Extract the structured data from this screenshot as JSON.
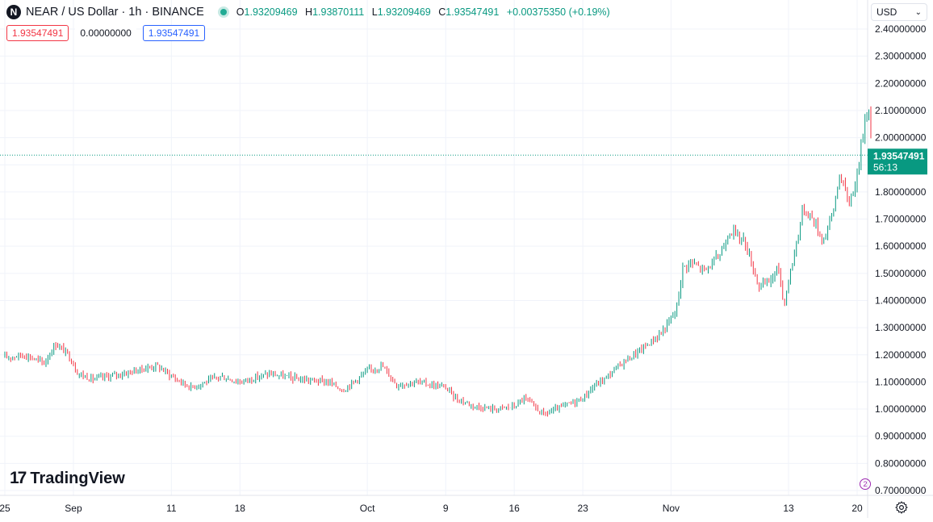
{
  "header": {
    "logo_letter": "N",
    "symbol": "NEAR / US Dollar · 1h · BINANCE",
    "open_label": "O",
    "open": "1.93209469",
    "high_label": "H",
    "high": "1.93870111",
    "low_label": "L",
    "low": "1.93209469",
    "close_label": "C",
    "close": "1.93547491",
    "change": "+0.00375350 (+0.19%)",
    "sell_price": "1.93547491",
    "spread": "0.00000000",
    "buy_price": "1.93547491"
  },
  "currency": {
    "label": "USD"
  },
  "brand": {
    "mark": "17",
    "name": "TradingView"
  },
  "price_tag": {
    "price": "1.93547491",
    "countdown": "56:13"
  },
  "colors": {
    "up": "#089981",
    "down": "#f23645",
    "grid": "#f0f3fa",
    "axis_text": "#131722",
    "price_line": "#089981"
  },
  "chart_data": {
    "type": "candlestick",
    "title": "NEAR / US Dollar · 1h · BINANCE",
    "ylim": [
      0.68,
      2.48
    ],
    "y_ticks": [
      "0.70000000",
      "0.80000000",
      "0.90000000",
      "1.00000000",
      "1.10000000",
      "1.20000000",
      "1.30000000",
      "1.40000000",
      "1.50000000",
      "1.60000000",
      "1.70000000",
      "1.80000000",
      "1.90000000",
      "2.00000000",
      "2.10000000",
      "2.20000000",
      "2.30000000",
      "2.40000000"
    ],
    "x_ticks": [
      {
        "label": "25",
        "day": 0
      },
      {
        "label": "Sep",
        "day": 7
      },
      {
        "label": "11",
        "day": 17
      },
      {
        "label": "18",
        "day": 24
      },
      {
        "label": "Oct",
        "day": 37
      },
      {
        "label": "9",
        "day": 45
      },
      {
        "label": "16",
        "day": 52
      },
      {
        "label": "23",
        "day": 59
      },
      {
        "label": "Nov",
        "day": 68
      },
      {
        "label": "13",
        "day": 80
      },
      {
        "label": "20",
        "day": 87
      }
    ],
    "x_range_days": [
      0,
      88.5
    ],
    "current_price": 1.93547491,
    "trend": [
      [
        0,
        1.19
      ],
      [
        2,
        1.2
      ],
      [
        4,
        1.17
      ],
      [
        5.2,
        1.24
      ],
      [
        6.5,
        1.2
      ],
      [
        7.5,
        1.13
      ],
      [
        9,
        1.11
      ],
      [
        12,
        1.13
      ],
      [
        15.5,
        1.16
      ],
      [
        17.5,
        1.11
      ],
      [
        19,
        1.08
      ],
      [
        22,
        1.12
      ],
      [
        24,
        1.1
      ],
      [
        27,
        1.13
      ],
      [
        30,
        1.11
      ],
      [
        33,
        1.1
      ],
      [
        34.5,
        1.07
      ],
      [
        37,
        1.14
      ],
      [
        38.5,
        1.16
      ],
      [
        40,
        1.09
      ],
      [
        42,
        1.1
      ],
      [
        45,
        1.08
      ],
      [
        46,
        1.04
      ],
      [
        48,
        1.01
      ],
      [
        50,
        1.0
      ],
      [
        52,
        1.01
      ],
      [
        53,
        1.04
      ],
      [
        55,
        0.98
      ],
      [
        57,
        1.01
      ],
      [
        59,
        1.04
      ],
      [
        60,
        1.08
      ],
      [
        61.5,
        1.12
      ],
      [
        63,
        1.17
      ],
      [
        65,
        1.22
      ],
      [
        67,
        1.28
      ],
      [
        68.5,
        1.36
      ],
      [
        69.2,
        1.52
      ],
      [
        70,
        1.54
      ],
      [
        71.5,
        1.51
      ],
      [
        73,
        1.57
      ],
      [
        74,
        1.66
      ],
      [
        75.5,
        1.62
      ],
      [
        77,
        1.45
      ],
      [
        78,
        1.47
      ],
      [
        79,
        1.52
      ],
      [
        79.5,
        1.38
      ],
      [
        80.5,
        1.56
      ],
      [
        81.5,
        1.74
      ],
      [
        82.5,
        1.7
      ],
      [
        83.5,
        1.62
      ],
      [
        84.5,
        1.72
      ],
      [
        85.2,
        1.86
      ],
      [
        86.2,
        1.76
      ],
      [
        87,
        1.86
      ],
      [
        87.8,
        2.07
      ],
      [
        88.2,
        2.12
      ],
      [
        88.5,
        1.935
      ]
    ]
  }
}
